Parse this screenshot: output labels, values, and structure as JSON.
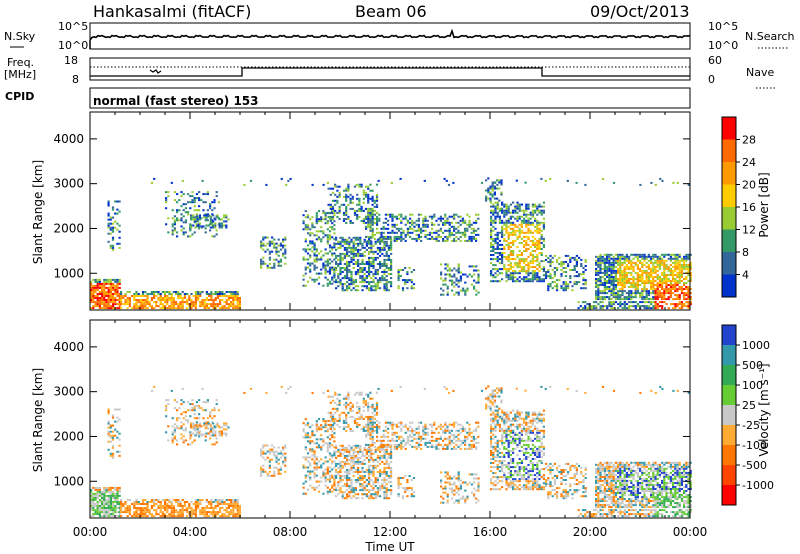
{
  "header": {
    "station": "Hankasalmi (fitACF)",
    "beam": "Beam 06",
    "date": "09/Oct/2013"
  },
  "noise_panel": {
    "left_label": "N.Sky",
    "right_label": "N.Search",
    "left_ticks": [
      "10^5",
      "10^0"
    ],
    "right_ticks": [
      "10^5",
      "10^0"
    ]
  },
  "freq_panel": {
    "label_line1": "Freq.",
    "label_line2": "[MHz]",
    "left_ticks": [
      "18",
      "8"
    ],
    "right_ticks": [
      "60",
      "0"
    ],
    "right_label": "Nave"
  },
  "cpid": {
    "label": "CPID",
    "value": "normal (fast stereo) 153"
  },
  "x_axis": {
    "label": "Time UT",
    "ticks": [
      "00:00",
      "04:00",
      "08:00",
      "12:00",
      "16:00",
      "20:00",
      "00:00"
    ]
  },
  "chart_data": [
    {
      "type": "heatmap",
      "name": "power",
      "ylabel": "Slant Range [km]",
      "xlabel": "Time UT",
      "xlim": [
        0,
        24
      ],
      "ylim": [
        180,
        4600
      ],
      "y_ticks": [
        "4000",
        "3000",
        "2000",
        "1000"
      ],
      "colorbar": {
        "label": "Power [dB]",
        "ticks": [
          "28",
          "24",
          "20",
          "16",
          "12",
          "8",
          "4"
        ],
        "colors": [
          "#ff0000",
          "#ff6a00",
          "#ff9900",
          "#ffcc00",
          "#99cc33",
          "#339966",
          "#336699",
          "#0033cc"
        ]
      }
    },
    {
      "type": "heatmap",
      "name": "velocity",
      "ylabel": "Slant Range [km]",
      "xlabel": "Time UT",
      "xlim": [
        0,
        24
      ],
      "ylim": [
        180,
        4600
      ],
      "y_ticks": [
        "4000",
        "3000",
        "2000",
        "1000"
      ],
      "colorbar": {
        "label": "Velocity [m s⁻¹]",
        "ticks": [
          "1000",
          "500",
          "100",
          "25",
          "-25",
          "-100",
          "-500",
          "-1000"
        ],
        "colors": [
          "#2244cc",
          "#3399aa",
          "#33aa55",
          "#66cc33",
          "#c8c8c8",
          "#ffaa33",
          "#ff7700",
          "#ff4400",
          "#ff0000"
        ]
      }
    }
  ]
}
